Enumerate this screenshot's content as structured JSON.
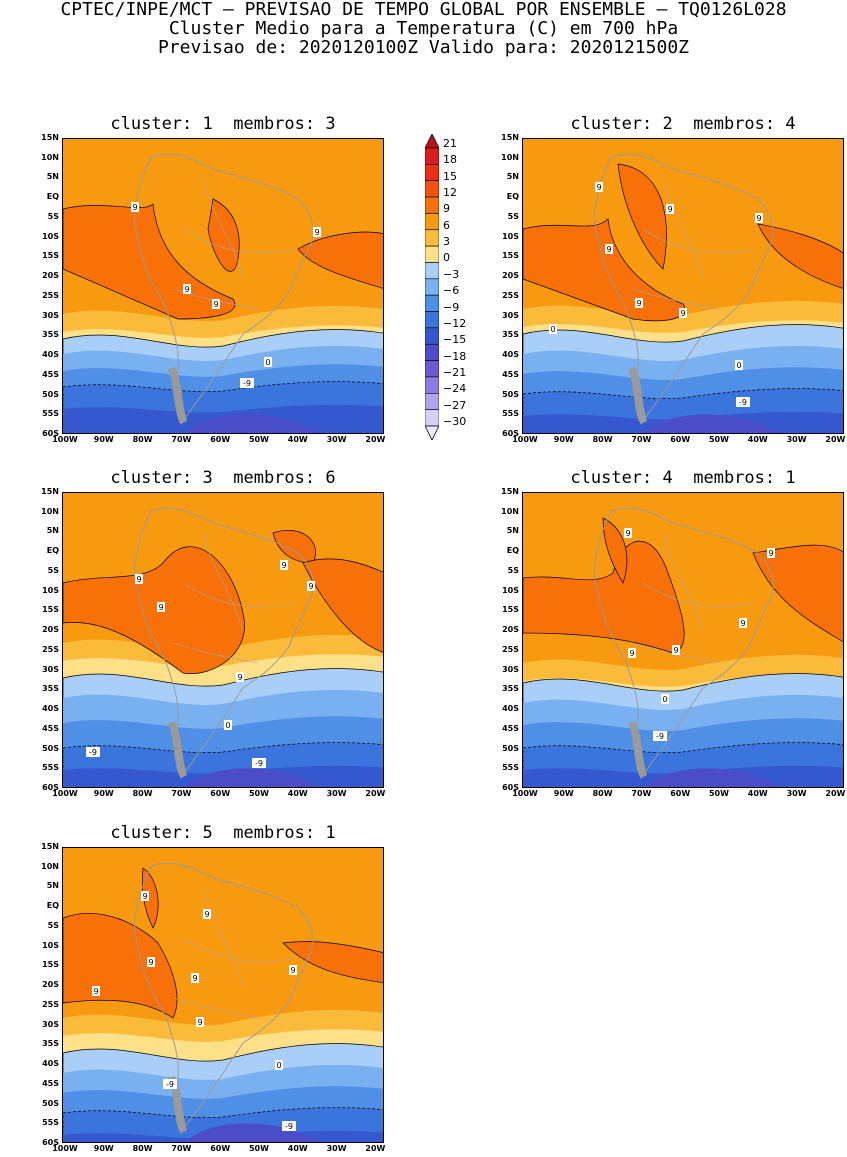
{
  "header": {
    "line1": "CPTEC/INPE/MCT – PREVISAO DE TEMPO GLOBAL POR ENSEMBLE – TQ0126L028",
    "line2": "Cluster Medio para a Temperatura (C) em 700 hPa",
    "line3": "Previsao de: 2020120100Z    Valido para: 2020121500Z"
  },
  "axes": {
    "lat_labels": [
      "15N",
      "10N",
      "5N",
      "EQ",
      "5S",
      "10S",
      "15S",
      "20S",
      "25S",
      "30S",
      "35S",
      "40S",
      "45S",
      "50S",
      "55S",
      "60S"
    ],
    "lon_labels": [
      "100W",
      "90W",
      "80W",
      "70W",
      "60W",
      "50W",
      "40W",
      "30W",
      "20W"
    ],
    "lat_range": [
      15,
      -60
    ],
    "lon_range": [
      -100,
      -10
    ]
  },
  "colorbar": {
    "labels": [
      "21",
      "18",
      "15",
      "12",
      "9",
      "6",
      "3",
      "0",
      "-3",
      "-6",
      "-9",
      "-12",
      "-15",
      "-18",
      "-21",
      "-24",
      "-27",
      "-30"
    ],
    "colors": [
      "#b81414",
      "#d81e1e",
      "#ee2d17",
      "#f4520f",
      "#f87008",
      "#f89a10",
      "#fbbb3a",
      "#fde088",
      "#a9cef7",
      "#78b0f0",
      "#4f8fe6",
      "#3a74dc",
      "#3558cf",
      "#4b4cc8",
      "#6a5ad6",
      "#8d7de2",
      "#b0a4ec",
      "#d6d0f6"
    ]
  },
  "panels": [
    {
      "title_cluster": "cluster: 1",
      "title_members": "membros: 3",
      "contour_labels": [
        "9",
        "9",
        "9",
        "9",
        "0",
        "-9"
      ]
    },
    {
      "title_cluster": "cluster: 2",
      "title_members": "membros: 4",
      "contour_labels": [
        "9",
        "9",
        "9",
        "9",
        "9",
        "9",
        "0",
        "0",
        "-9"
      ]
    },
    {
      "title_cluster": "cluster: 3",
      "title_members": "membros: 6",
      "contour_labels": [
        "9",
        "9",
        "9",
        "9",
        "9",
        "0",
        "-9",
        "-9"
      ]
    },
    {
      "title_cluster": "cluster: 4",
      "title_members": "membros: 1",
      "contour_labels": [
        "9",
        "9",
        "9",
        "9",
        "9",
        "0",
        "-9"
      ]
    },
    {
      "title_cluster": "cluster: 5",
      "title_members": "membros: 1",
      "contour_labels": [
        "9",
        "9",
        "9",
        "9",
        "9",
        "9",
        "9",
        "0",
        "-9",
        "-9"
      ]
    }
  ]
}
